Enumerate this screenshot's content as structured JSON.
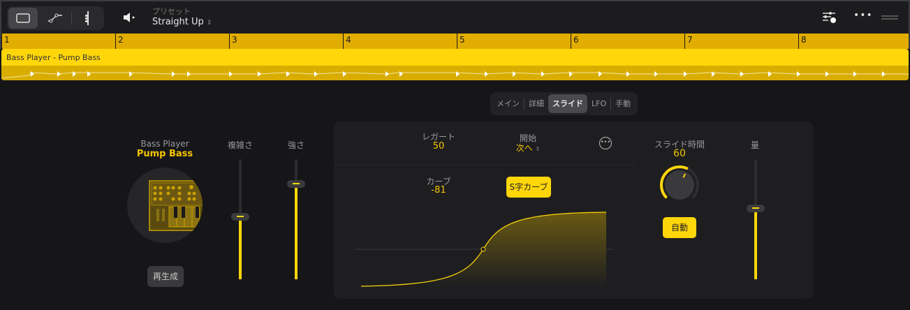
{
  "toolbar": {
    "preset_label": "プリセット",
    "preset_value": "Straight Up",
    "modes": [
      "region-view-icon",
      "automation-icon",
      "chord-icon"
    ]
  },
  "ruler": {
    "bars": [
      "1",
      "2",
      "3",
      "4",
      "5",
      "6",
      "7",
      "8"
    ]
  },
  "region": {
    "name": "Bass Player - Pump Bass"
  },
  "tabs": [
    "メイン",
    "詳細",
    "スライド",
    "LFO",
    "手動"
  ],
  "active_tab": "スライド",
  "player": {
    "title": "Bass Player",
    "name": "Pump Bass",
    "regenerate": "再生成"
  },
  "sliders": {
    "complexity": {
      "label": "複雑さ",
      "value": 0.52
    },
    "intensity": {
      "label": "強さ",
      "value": 0.79
    },
    "amount": {
      "label": "量",
      "value": 0.59
    }
  },
  "slide": {
    "legato_label": "レガート",
    "legato_value": "50",
    "start_label": "開始",
    "start_value": "次へ",
    "curve_label": "カーブ",
    "curve_value": "-81",
    "curve_type": "S字カーブ",
    "time_label": "スライド時間",
    "time_value": "60",
    "time_fraction": 0.6,
    "auto": "自動"
  },
  "colors": {
    "accent": "#ffd60a",
    "ruler": "#e1ad00"
  }
}
